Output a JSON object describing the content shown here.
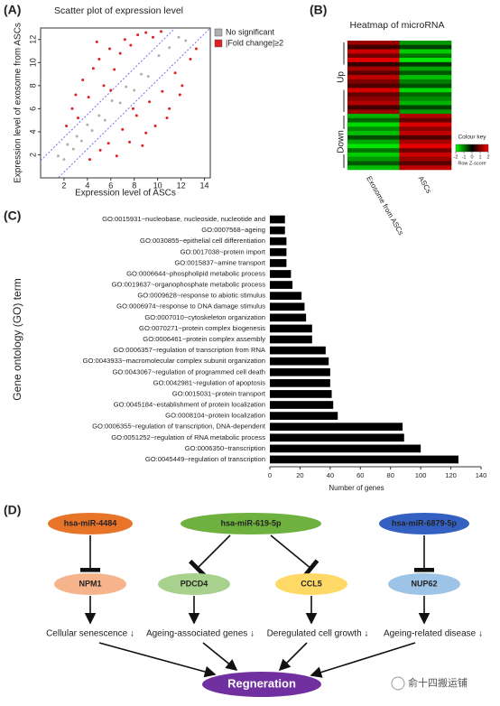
{
  "panel_labels": [
    "(A)",
    "(B)",
    "(C)",
    "(D)"
  ],
  "chart_data": [
    {
      "type": "scatter",
      "title": "Scatter plot of expression level",
      "x_label": "Expression level of ASCs",
      "y_label": "Expression level of exosome  from ASCs",
      "xlim": [
        0,
        14.5
      ],
      "ylim": [
        0,
        13
      ],
      "xticks": [
        2,
        4,
        6,
        8,
        10,
        12,
        14
      ],
      "yticks": [
        2,
        4,
        6,
        8,
        10,
        12
      ],
      "reference_lines": [
        1.5,
        -1.5
      ],
      "reference_color": "#6f6ff0",
      "legend": "outside-right",
      "series": [
        {
          "name": "No significant",
          "color": "#b0b0b0",
          "x": [
            1.5,
            2.0,
            2.3,
            2.8,
            3.1,
            3.5,
            4.0,
            4.4,
            5.0,
            5.5,
            6.1,
            6.8,
            7.3,
            8.0,
            8.6,
            9.2,
            10.1,
            11.0,
            11.8,
            12.4
          ],
          "y": [
            1.9,
            1.6,
            2.9,
            2.5,
            3.6,
            3.2,
            4.6,
            4.1,
            5.4,
            5.0,
            6.7,
            6.5,
            7.9,
            7.6,
            9.0,
            8.8,
            10.6,
            11.3,
            12.2,
            11.9
          ]
        },
        {
          "name": "|Fold change|≥2",
          "color": "#e02020",
          "x": [
            2.2,
            2.7,
            3.2,
            3.6,
            4.1,
            4.5,
            5.0,
            5.4,
            5.9,
            6.3,
            6.8,
            7.2,
            7.7,
            8.3,
            9.0,
            9.6,
            10.3,
            3.0,
            4.8,
            6.0,
            4.2,
            5.1,
            5.8,
            6.5,
            7.0,
            7.6,
            8.2,
            8.7,
            9.3,
            9.8,
            10.4,
            11.0,
            11.5,
            12.1,
            12.8,
            13.3,
            9.0,
            10.8,
            11.9,
            7.9
          ],
          "y": [
            4.5,
            6.0,
            5.2,
            8.5,
            7.0,
            9.5,
            10.3,
            8.0,
            11.2,
            9.4,
            10.8,
            12.0,
            11.5,
            12.4,
            12.6,
            12.2,
            12.7,
            7.2,
            11.8,
            7.6,
            1.6,
            2.4,
            3.0,
            1.9,
            4.2,
            3.1,
            5.4,
            2.8,
            6.6,
            4.5,
            7.5,
            6.0,
            9.1,
            8.0,
            10.3,
            11.2,
            3.9,
            5.2,
            7.2,
            6.0
          ]
        }
      ]
    },
    {
      "type": "heatmap",
      "title": "Heatmap of microRNA",
      "row_groups": [
        "Up",
        "Down"
      ],
      "columns": [
        "Exosome from ASCs",
        "ASCs"
      ],
      "zlim": [
        -2,
        2
      ],
      "colorbar_title": "Colour key",
      "colorbar_label": "Row Z-score",
      "colorbar_ticks": [
        -2,
        -1,
        0,
        1,
        2
      ],
      "values": [
        [
          1.2,
          -1.2
        ],
        [
          0.5,
          -0.5
        ],
        [
          1.6,
          -1.6
        ],
        [
          0.9,
          -0.9
        ],
        [
          1.8,
          -1.8
        ],
        [
          0.4,
          -0.4
        ],
        [
          1.3,
          -1.3
        ],
        [
          0.7,
          -0.7
        ],
        [
          1.5,
          -1.5
        ],
        [
          1.0,
          -1.0
        ],
        [
          0.6,
          -0.6
        ],
        [
          1.7,
          -1.7
        ],
        [
          0.8,
          -0.8
        ],
        [
          1.1,
          -1.1
        ],
        [
          1.4,
          -1.4
        ],
        [
          0.5,
          -0.5
        ],
        [
          1.2,
          -1.2
        ],
        [
          -1.4,
          1.4
        ],
        [
          -0.8,
          0.8
        ],
        [
          -1.7,
          1.7
        ],
        [
          -1.1,
          1.1
        ],
        [
          -1.5,
          1.5
        ],
        [
          -0.6,
          0.6
        ],
        [
          -1.3,
          1.3
        ],
        [
          -1.8,
          1.8
        ],
        [
          -0.9,
          0.9
        ],
        [
          -1.6,
          1.6
        ],
        [
          -1.2,
          1.2
        ],
        [
          -0.7,
          0.7
        ],
        [
          -1.5,
          1.5
        ]
      ]
    },
    {
      "type": "bar",
      "orientation": "horizontal",
      "x_label": "Number of genes",
      "y_label": "Gene ontology (GO) term",
      "color": "#000000",
      "xlim": [
        0,
        140
      ],
      "xticks": [
        0,
        20,
        40,
        60,
        80,
        100,
        120,
        140
      ],
      "categories": [
        "GO:0015931~nucleobase, nucleoside, nucleotide and",
        "GO:0007568~ageing",
        "GO:0030855~epithelial cell differentiation",
        "GO:0017038~protein import",
        "GO:0015837~amine transport",
        "GO:0006644~phospholipid metabolic process",
        "GO:0019637~organophosphate metabolic process",
        "GO:0009628~response to abiotic stimulus",
        "GO:0006974~response to DNA damage stimulus",
        "GO:0007010~cytoskeleton organization",
        "GO:0070271~protein complex biogenesis",
        "GO:0006461~protein complex assembly",
        "GO:0006357~regulation of transcription from RNA",
        "GO:0043933~macromolecular complex subunit organization",
        "GO:0043067~regulation of programmed cell death",
        "GO:0042981~regulation of apoptosis",
        "GO:0015031~protein transport",
        "GO:0045184~establishment of protein localization",
        "GO:0008104~protein localization",
        "GO:0006355~regulation of transcription, DNA-dependent",
        "GO:0051252~regulation of RNA metabolic process",
        "GO:0006350~transcription",
        "GO:0045449~regulation of transcription"
      ],
      "values": [
        10,
        10,
        11,
        11,
        11,
        14,
        15,
        21,
        23,
        24,
        28,
        28,
        37,
        39,
        40,
        40,
        41,
        42,
        45,
        88,
        89,
        100,
        125
      ]
    }
  ],
  "diagram": {
    "mirnas": [
      "hsa-miR-4484",
      "hsa-miR-619-5p",
      "hsa-miR-6879-5p"
    ],
    "genes": [
      "NPM1",
      "PDCD4",
      "CCL5",
      "NUP62"
    ],
    "outcomes": [
      "Cellular senescence ↓",
      "Ageing-associated genes ↓",
      "Deregulated cell growth ↓",
      "Ageing-related disease ↓"
    ],
    "result": "Regneration"
  },
  "watermark": "俞十四搬运铺"
}
